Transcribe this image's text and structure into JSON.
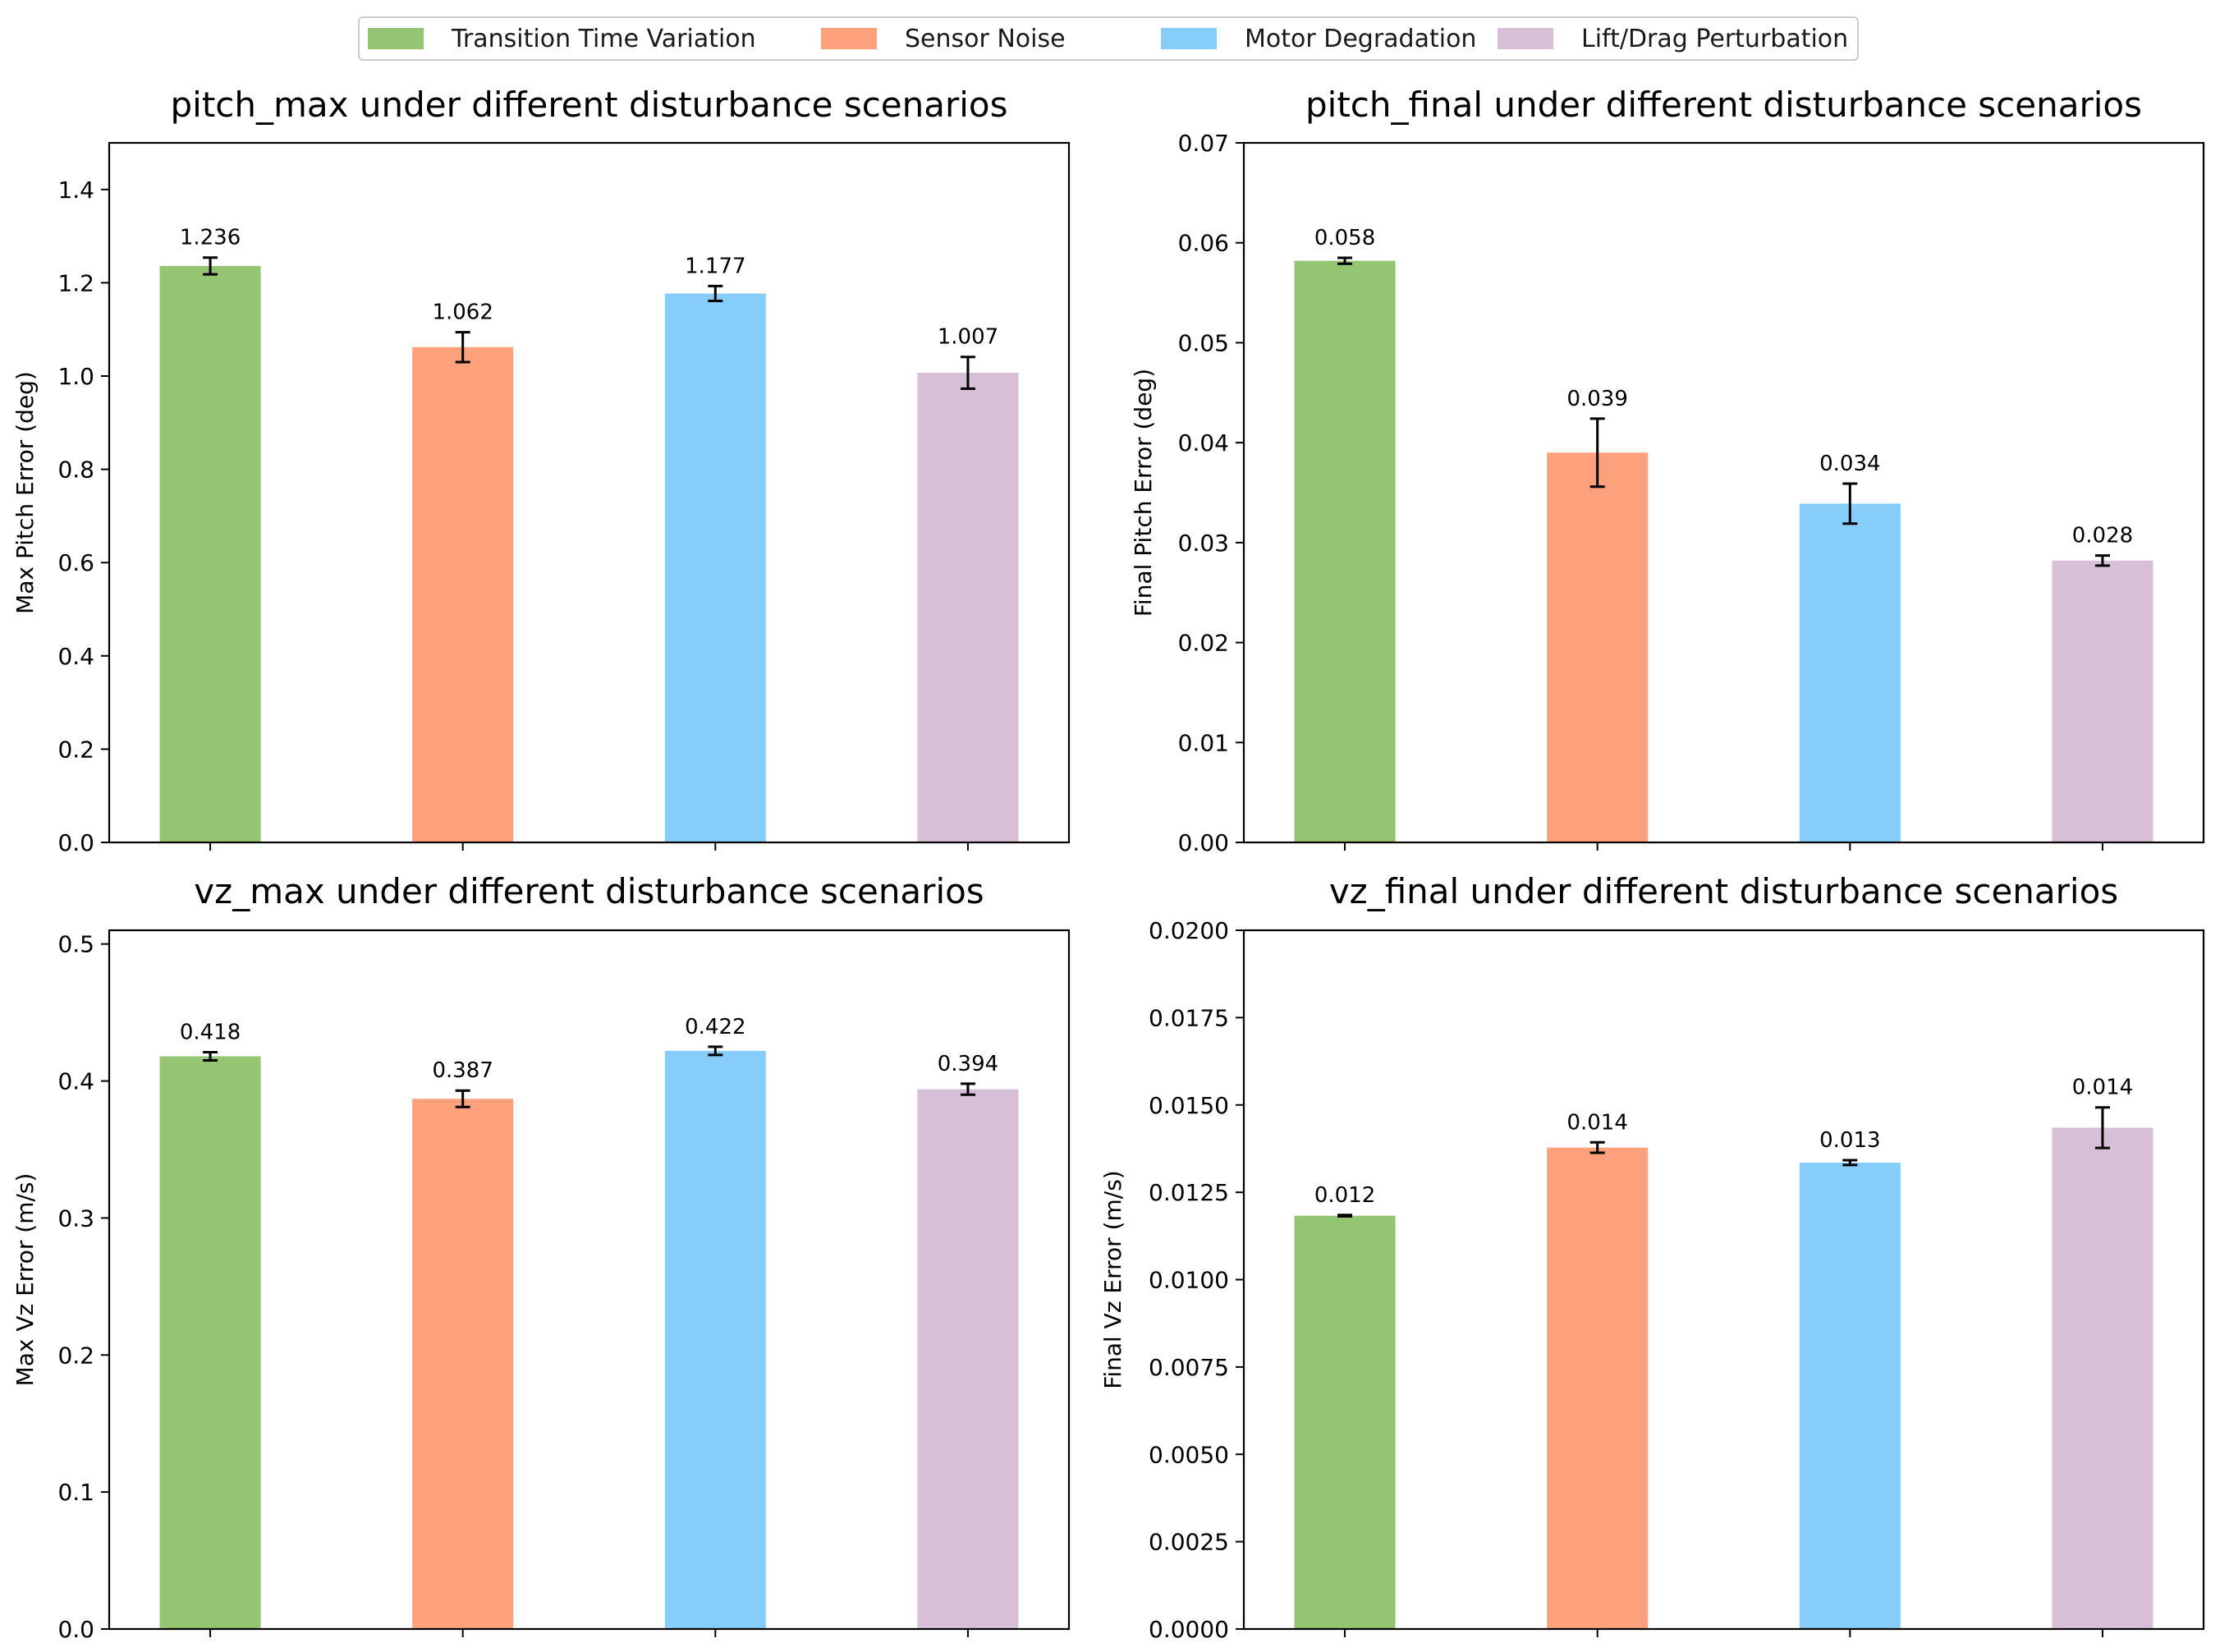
{
  "legend": {
    "items": [
      {
        "label": "Transition Time Variation",
        "color": "#94c572"
      },
      {
        "label": "Sensor Noise",
        "color": "#fda07c"
      },
      {
        "label": "Motor Degradation",
        "color": "#87cdf9"
      },
      {
        "label": "Lift/Drag Perturbation",
        "color": "#d7bfd8"
      }
    ]
  },
  "chart_data": [
    {
      "type": "bar",
      "title": "pitch_max  under different disturbance scenarios",
      "xlabel": "",
      "ylabel": "Max Pitch Error (deg)",
      "categories": [
        "Transition Time Variation",
        "Sensor Noise",
        "Motor Degradation",
        "Lift/Drag Perturbation"
      ],
      "values": [
        1.236,
        1.062,
        1.177,
        1.007
      ],
      "errors": [
        0.018,
        0.032,
        0.016,
        0.034
      ],
      "data_labels": [
        "1.236",
        "1.062",
        "1.177",
        "1.007"
      ],
      "ylim": [
        0,
        1.5
      ],
      "yticks": [
        0.0,
        0.2,
        0.4,
        0.6,
        0.8,
        1.0,
        1.2,
        1.4
      ],
      "ytick_labels": [
        "0.0",
        "0.2",
        "0.4",
        "0.6",
        "0.8",
        "1.0",
        "1.2",
        "1.4"
      ],
      "grid": false
    },
    {
      "type": "bar",
      "title": "pitch_final  under different disturbance scenarios",
      "xlabel": "",
      "ylabel": "Final Pitch Error (deg)",
      "categories": [
        "Transition Time Variation",
        "Sensor Noise",
        "Motor Degradation",
        "Lift/Drag Perturbation"
      ],
      "values": [
        0.0582,
        0.039,
        0.0339,
        0.0282
      ],
      "errors": [
        0.0003,
        0.0034,
        0.002,
        0.0005
      ],
      "data_labels": [
        "0.058",
        "0.039",
        "0.034",
        "0.028"
      ],
      "ylim": [
        0,
        0.07
      ],
      "yticks": [
        0.0,
        0.01,
        0.02,
        0.03,
        0.04,
        0.05,
        0.06,
        0.07
      ],
      "ytick_labels": [
        "0.00",
        "0.01",
        "0.02",
        "0.03",
        "0.04",
        "0.05",
        "0.06",
        "0.07"
      ],
      "grid": false
    },
    {
      "type": "bar",
      "title": "vz_max  under different disturbance scenarios",
      "xlabel": "",
      "ylabel": "Max Vz Error (m/s)",
      "categories": [
        "Transition Time Variation",
        "Sensor Noise",
        "Motor Degradation",
        "Lift/Drag Perturbation"
      ],
      "values": [
        0.418,
        0.387,
        0.422,
        0.394
      ],
      "errors": [
        0.003,
        0.006,
        0.003,
        0.004
      ],
      "data_labels": [
        "0.418",
        "0.387",
        "0.422",
        "0.394"
      ],
      "ylim": [
        0,
        0.51
      ],
      "yticks": [
        0.0,
        0.1,
        0.2,
        0.3,
        0.4,
        0.5
      ],
      "ytick_labels": [
        "0.0",
        "0.1",
        "0.2",
        "0.3",
        "0.4",
        "0.5"
      ],
      "grid": false
    },
    {
      "type": "bar",
      "title": "vz_final  under different disturbance scenarios",
      "xlabel": "",
      "ylabel": "Final Vz Error (m/s)",
      "categories": [
        "Transition Time Variation",
        "Sensor Noise",
        "Motor Degradation",
        "Lift/Drag Perturbation"
      ],
      "values": [
        0.01183,
        0.01378,
        0.01335,
        0.01435
      ],
      "errors": [
        2e-05,
        0.00015,
        7e-05,
        0.00058
      ],
      "data_labels": [
        "0.012",
        "0.014",
        "0.013",
        "0.014"
      ],
      "ylim": [
        0,
        0.02
      ],
      "yticks": [
        0.0,
        0.0025,
        0.005,
        0.0075,
        0.01,
        0.0125,
        0.015,
        0.0175,
        0.02
      ],
      "ytick_labels": [
        "0.0000",
        "0.0025",
        "0.0050",
        "0.0075",
        "0.0100",
        "0.0125",
        "0.0150",
        "0.0175",
        "0.0200"
      ],
      "grid": false
    }
  ]
}
